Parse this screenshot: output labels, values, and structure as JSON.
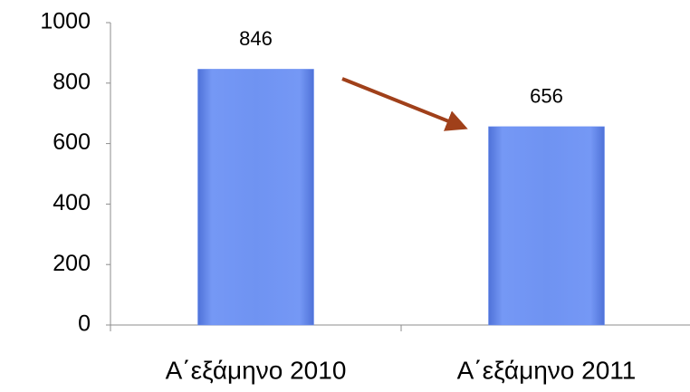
{
  "chart_data": {
    "type": "bar",
    "categories": [
      "Α΄εξάμηνο 2010",
      "Α΄εξάμηνο 2011"
    ],
    "values": [
      846,
      656
    ],
    "color": "#6b8ff0",
    "ylim": [
      0,
      1000
    ],
    "yticks": [
      0,
      200,
      400,
      600,
      800,
      1000
    ],
    "grid": false
  }
}
